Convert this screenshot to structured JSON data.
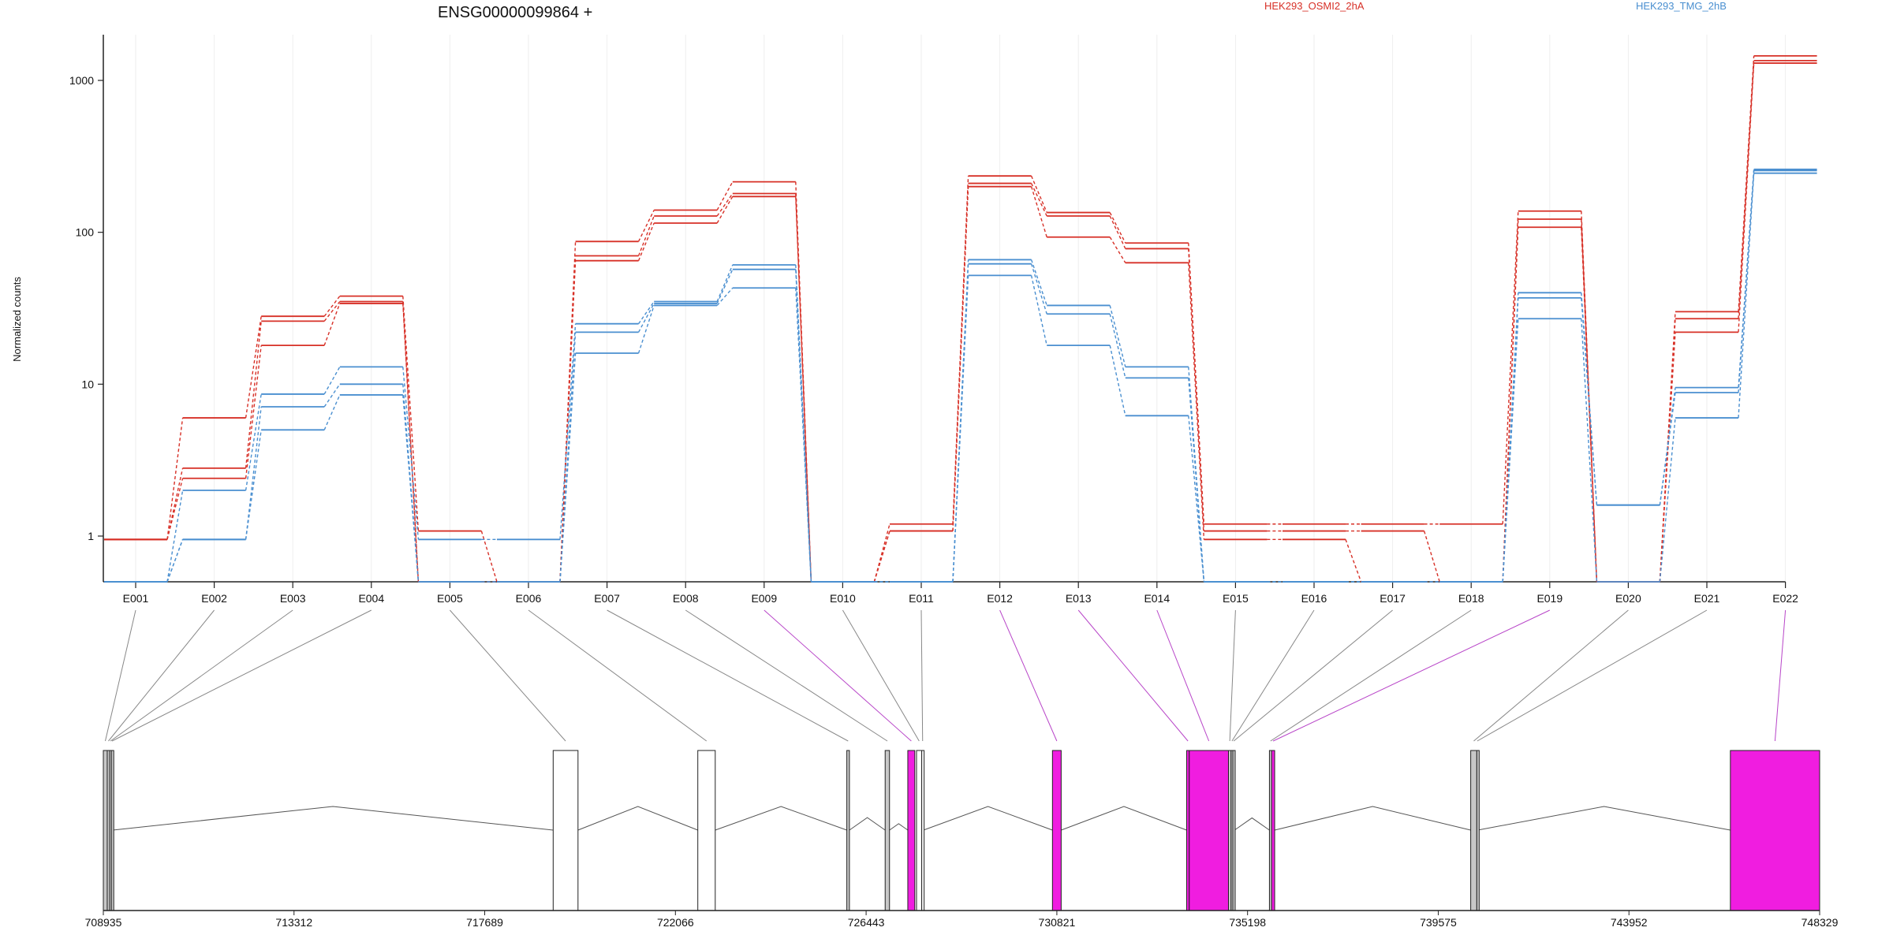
{
  "chart_data": {
    "type": "line",
    "title": "ENSG00000099864 +",
    "ylabel": "Normalized counts",
    "yscale": "log",
    "ylim": [
      0.5,
      2000
    ],
    "y_ticks": [
      1,
      10,
      100,
      1000
    ],
    "y_tick_labels": [
      "1",
      "10",
      "100",
      "1000"
    ],
    "grid": true,
    "legend_position": "top",
    "colors": {
      "red": "#d73027",
      "blue": "#4a8fd0",
      "exon_default": "#ffffff",
      "exon_gray": "#c8c8c8",
      "exon_magenta": "#f01de0",
      "connector_gray": "#888888",
      "connector_magenta": "#b845c8"
    },
    "categories": [
      "E001",
      "E002",
      "E003",
      "E004",
      "E005",
      "E006",
      "E007",
      "E008",
      "E009",
      "E010",
      "E011",
      "E012",
      "E013",
      "E014",
      "E015",
      "E016",
      "E017",
      "E018",
      "E019",
      "E020",
      "E021",
      "E022"
    ],
    "series": [
      {
        "name": "HEK293_OSMI2_2hA",
        "group": "red",
        "values": [
          0.95,
          6.0,
          28,
          38,
          1.08,
          0.5,
          87,
          140,
          215,
          0.5,
          1.2,
          235,
          135,
          85,
          1.2,
          1.2,
          1.2,
          1.2,
          138,
          0.5,
          30,
          1450
        ]
      },
      {
        "name": "",
        "group": "red",
        "values": [
          0.95,
          2.8,
          26,
          35,
          0.5,
          0.5,
          70,
          128,
          180,
          0.5,
          1.08,
          210,
          128,
          78,
          1.08,
          1.08,
          1.08,
          0.5,
          122,
          0.5,
          27,
          1350
        ]
      },
      {
        "name": "",
        "group": "red",
        "values": [
          0.95,
          2.4,
          18,
          34,
          0.5,
          0.5,
          65,
          115,
          172,
          0.5,
          1.08,
          200,
          93,
          63,
          0.95,
          0.95,
          0.5,
          0.5,
          108,
          0.5,
          22,
          1300
        ]
      },
      {
        "name": "HEK293_TMG_2hB",
        "group": "blue",
        "values": [
          0.5,
          2.0,
          8.6,
          13,
          0.95,
          0.95,
          25,
          35,
          61,
          0.5,
          0.5,
          66,
          33,
          13,
          0.5,
          0.5,
          0.5,
          0.5,
          40,
          1.6,
          9.5,
          260
        ]
      },
      {
        "name": "",
        "group": "blue",
        "values": [
          0.5,
          0.95,
          7.1,
          10,
          0.5,
          0.5,
          22,
          34,
          57,
          0.5,
          0.5,
          62,
          29,
          11,
          0.5,
          0.5,
          0.5,
          0.5,
          37,
          1.6,
          8.8,
          255
        ]
      },
      {
        "name": "",
        "group": "blue",
        "values": [
          0.5,
          0.95,
          5.0,
          8.5,
          0.5,
          0.5,
          16,
          33,
          43,
          0.5,
          0.5,
          52,
          18,
          6.2,
          0.5,
          0.5,
          0.5,
          0.5,
          27,
          0.5,
          6.0,
          245
        ]
      }
    ],
    "genome": {
      "xlim": [
        708935,
        748329
      ],
      "ticks": [
        708935,
        713312,
        717689,
        722066,
        726443,
        730821,
        735198,
        739575,
        743952,
        748329
      ],
      "tick_labels": [
        "708935",
        "713312",
        "717689",
        "722066",
        "726443",
        "730821",
        "735198",
        "739575",
        "743952",
        "748329"
      ],
      "exons": [
        {
          "id": "E001",
          "start": 708935,
          "end": 709025,
          "fill": "gray"
        },
        {
          "id": "E002",
          "start": 709025,
          "end": 709080,
          "fill": "gray"
        },
        {
          "id": "E003",
          "start": 709080,
          "end": 709120,
          "fill": "gray"
        },
        {
          "id": "E004",
          "start": 709120,
          "end": 709150,
          "fill": "gray"
        },
        {
          "id": "E005",
          "start": 719260,
          "end": 719830,
          "fill": "white"
        },
        {
          "id": "E006",
          "start": 722580,
          "end": 722980,
          "fill": "white"
        },
        {
          "id": "E007",
          "start": 726000,
          "end": 726060,
          "fill": "gray"
        },
        {
          "id": "E008",
          "start": 726880,
          "end": 726980,
          "fill": "gray"
        },
        {
          "id": "E009",
          "start": 727400,
          "end": 727560,
          "fill": "magenta"
        },
        {
          "id": "E010",
          "start": 727600,
          "end": 727720,
          "fill": "white"
        },
        {
          "id": "E011",
          "start": 727720,
          "end": 727760,
          "fill": "white"
        },
        {
          "id": "E012",
          "start": 730720,
          "end": 730920,
          "fill": "magenta"
        },
        {
          "id": "E013",
          "start": 733800,
          "end": 733860,
          "fill": "magenta"
        },
        {
          "id": "E014",
          "start": 733860,
          "end": 734760,
          "fill": "magenta"
        },
        {
          "id": "E015",
          "start": 734760,
          "end": 734820,
          "fill": "gray"
        },
        {
          "id": "E016",
          "start": 734820,
          "end": 734860,
          "fill": "gray"
        },
        {
          "id": "E017",
          "start": 734860,
          "end": 734900,
          "fill": "gray"
        },
        {
          "id": "E018",
          "start": 735700,
          "end": 735750,
          "fill": "gray"
        },
        {
          "id": "E019",
          "start": 735750,
          "end": 735820,
          "fill": "magenta"
        },
        {
          "id": "E020",
          "start": 740320,
          "end": 740460,
          "fill": "gray"
        },
        {
          "id": "E021",
          "start": 740460,
          "end": 740480,
          "fill": "gray"
        },
        {
          "id": "E022",
          "start": 746280,
          "end": 748329,
          "fill": "magenta"
        }
      ]
    }
  }
}
